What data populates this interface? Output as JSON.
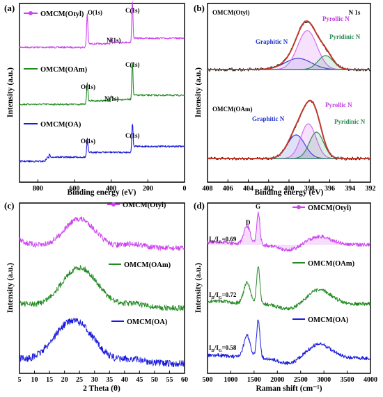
{
  "figure": {
    "panels": [
      "(a)",
      "(b)",
      "(c)",
      "(d)"
    ]
  },
  "colors": {
    "otyl": "#cc44ee",
    "oam": "#228b22",
    "oa": "#1a1adc",
    "fit": "#c0392b",
    "graphitic": "#2233cc",
    "pyrollic": "#d16cf0",
    "pyridinic": "#2e8b57",
    "baseline": "#c6a37a"
  },
  "chart_data": [
    {
      "panel": "(a)",
      "type": "line",
      "xlabel": "Binding energy (eV)",
      "ylabel": "Intensity (a.u.)",
      "xlim": [
        900,
        0
      ],
      "xticks": [
        "800",
        "600",
        "400",
        "200",
        "0"
      ],
      "legend_position": "left, beside each curve",
      "series": [
        {
          "name": "OMCM(Otyl)",
          "peaks_eV": [
            531,
            399,
            284.6
          ],
          "peak_labels": [
            "O(1s)",
            "N(1s)",
            "C(1s)"
          ]
        },
        {
          "name": "OMCM(OAm)",
          "peaks_eV": [
            531,
            399,
            284.6
          ],
          "peak_labels": [
            "O(1s)",
            "N(1s)",
            "C(1s)"
          ]
        },
        {
          "name": "OMCM(OA)",
          "peaks_eV": [
            531,
            284.6
          ],
          "peak_labels": [
            "O(1s)",
            "C(1s)"
          ]
        }
      ]
    },
    {
      "panel": "(b)",
      "type": "line",
      "title": "N 1s",
      "xlabel": "Binding energy (eV)",
      "ylabel": "Intensity (a.u.)",
      "xlim": [
        408,
        392
      ],
      "xticks": [
        "408",
        "406",
        "404",
        "402",
        "400",
        "398",
        "396",
        "394",
        "392"
      ],
      "samples": [
        {
          "name": "OMCM(Otyl)",
          "components": [
            {
              "name": "Graphitic N",
              "center_eV": 399.1
            },
            {
              "name": "Pyrollic N",
              "center_eV": 398.2
            },
            {
              "name": "Pyridinic N",
              "center_eV": 396.4
            }
          ]
        },
        {
          "name": "OMCM(OAm)",
          "components": [
            {
              "name": "Graphitic N",
              "center_eV": 399.3
            },
            {
              "name": "Pyrollic N",
              "center_eV": 398.1
            },
            {
              "name": "Pyridinic N",
              "center_eV": 397.3
            }
          ]
        }
      ]
    },
    {
      "panel": "(c)",
      "type": "line",
      "xlabel": "2 Theta (θ)",
      "ylabel": "Intensity (a.u.)",
      "xlim": [
        5,
        60
      ],
      "xticks": [
        "5",
        "10",
        "15",
        "20",
        "25",
        "30",
        "35",
        "40",
        "45",
        "50",
        "55",
        "60"
      ],
      "legend_position": "right, beside each curve",
      "series": [
        {
          "name": "OMCM(Otyl)",
          "broad_peak_2theta": 25
        },
        {
          "name": "OMCM(OAm)",
          "broad_peak_2theta": 25
        },
        {
          "name": "OMCM(OA)",
          "broad_peak_2theta": 23
        }
      ]
    },
    {
      "panel": "(d)",
      "type": "line",
      "xlabel": "Raman shift (cm⁻¹)",
      "ylabel": "Intensity (a.u.)",
      "xlim": [
        500,
        4000
      ],
      "xticks": [
        "500",
        "1000",
        "1500",
        "2000",
        "2500",
        "3000",
        "3500",
        "4000"
      ],
      "band_labels": [
        "D",
        "G"
      ],
      "band_positions": [
        1350,
        1590
      ],
      "series": [
        {
          "name": "OMCM(Otyl)",
          "ratio_label": "I",
          "ratio_value": "=0.69"
        },
        {
          "name": "OMCM(OAm)",
          "ratio_label": "I",
          "ratio_value": "=0.72"
        },
        {
          "name": "OMCM(OA)",
          "ratio_label": "I",
          "ratio_value": "=0.58"
        }
      ]
    }
  ]
}
